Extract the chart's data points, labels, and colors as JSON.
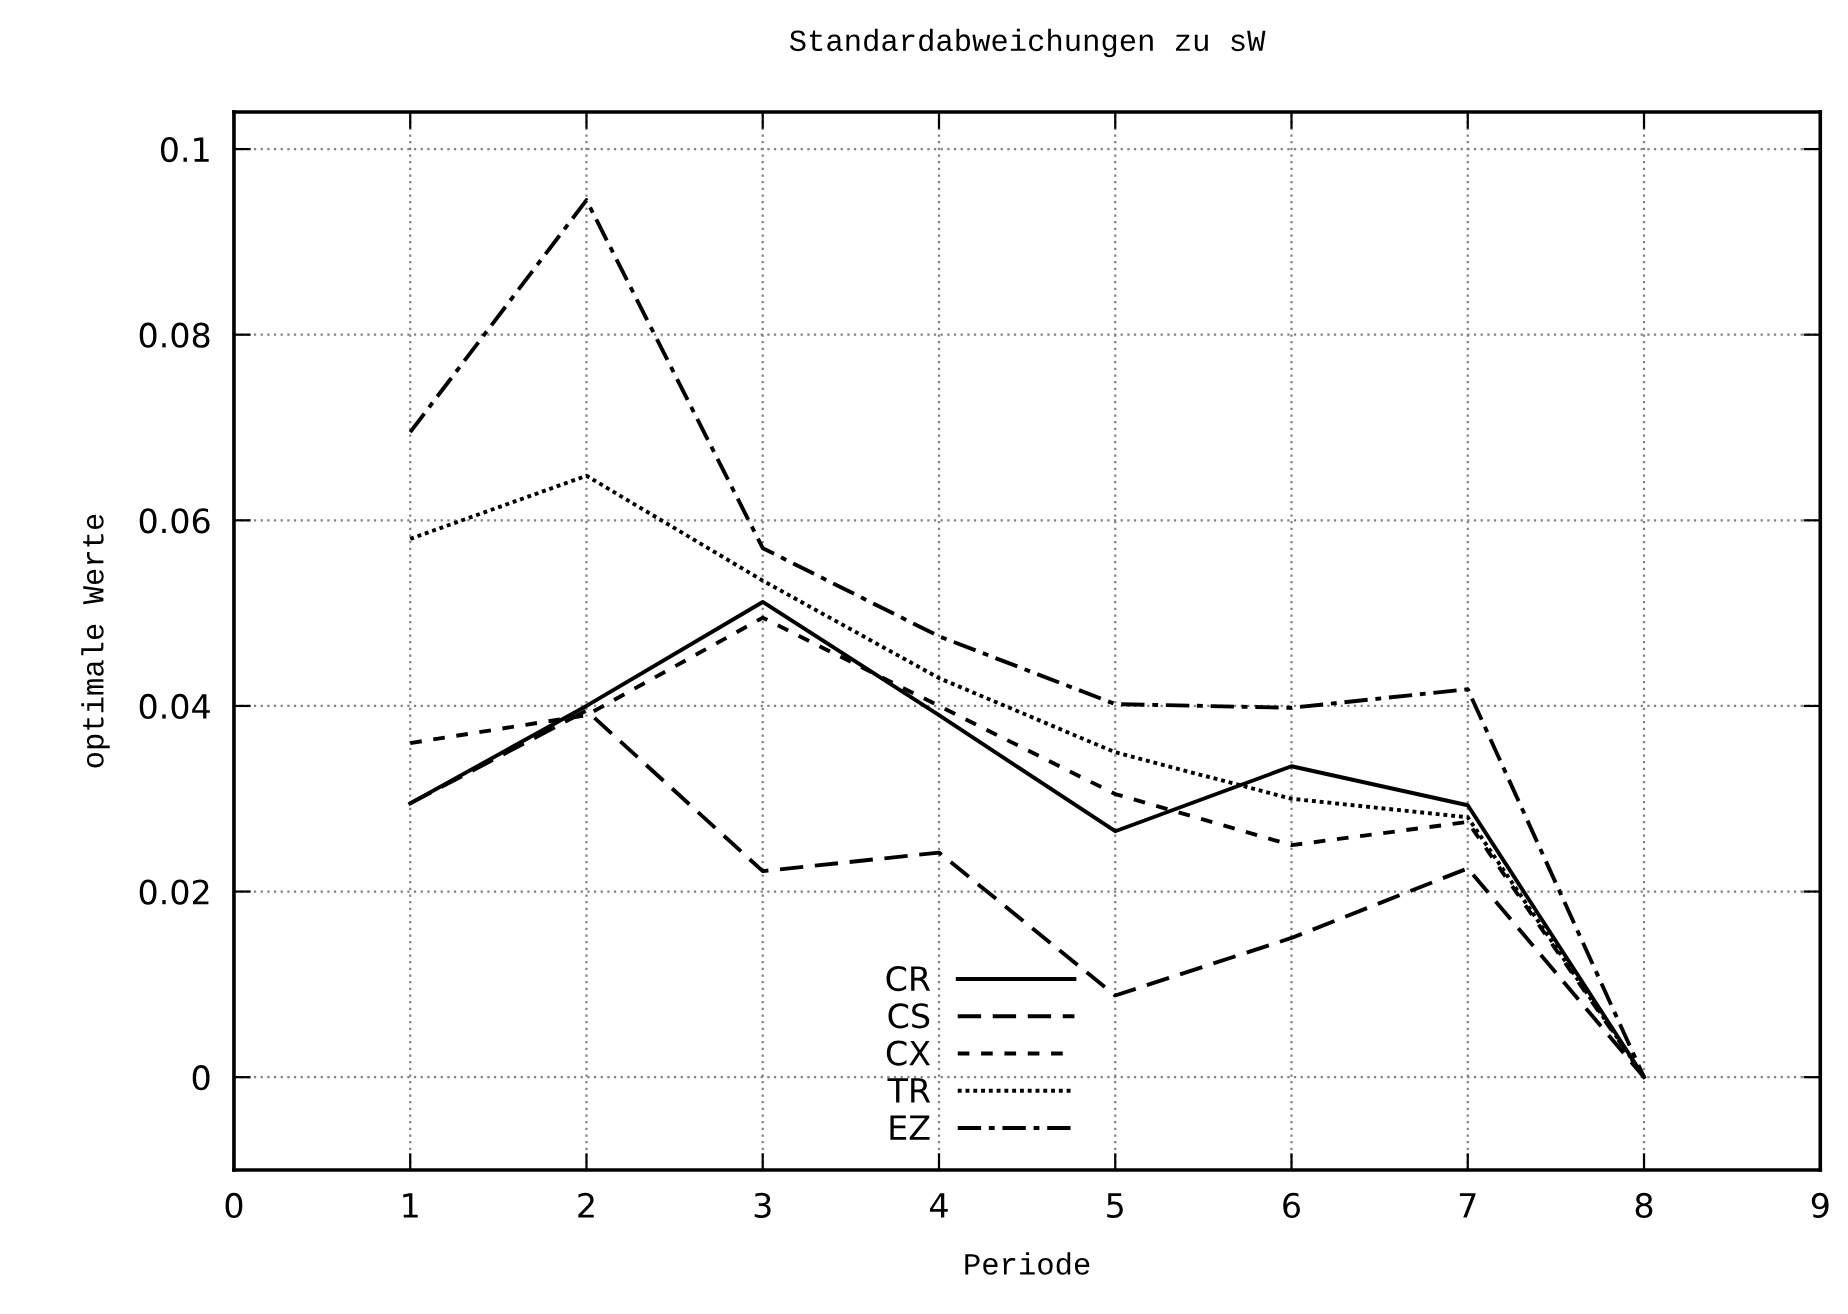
{
  "chart_data": {
    "type": "line",
    "title": "Standardabweichungen zu sW",
    "xlabel": "Periode",
    "ylabel": "optimale Werte",
    "x": [
      1,
      2,
      3,
      4,
      5,
      6,
      7,
      8
    ],
    "series": [
      {
        "name": "CR",
        "color": "#000000",
        "line_style": "solid",
        "values": [
          0.0295,
          0.04,
          0.0512,
          0.039,
          0.0265,
          0.0335,
          0.0293,
          0
        ]
      },
      {
        "name": "CS",
        "color": "#000000",
        "line_style": "dashed",
        "values": [
          0.0295,
          0.0395,
          0.0222,
          0.0242,
          0.0088,
          0.015,
          0.0225,
          0
        ]
      },
      {
        "name": "CX",
        "color": "#000000",
        "line_style": "shortdash",
        "values": [
          0.036,
          0.039,
          0.0495,
          0.04,
          0.0305,
          0.025,
          0.0275,
          0
        ]
      },
      {
        "name": "TR",
        "color": "#000000",
        "line_style": "dotted",
        "values": [
          0.058,
          0.0648,
          0.0535,
          0.043,
          0.035,
          0.03,
          0.028,
          0
        ]
      },
      {
        "name": "EZ",
        "color": "#000000",
        "line_style": "dashdot",
        "values": [
          0.0695,
          0.0945,
          0.057,
          0.0475,
          0.0402,
          0.0398,
          0.0418,
          0
        ]
      }
    ],
    "xlim": [
      0,
      9
    ],
    "xticks": [
      0,
      1,
      2,
      3,
      4,
      5,
      6,
      7,
      8,
      9
    ],
    "ylim": [
      -0.01,
      0.104
    ],
    "yticks": [
      0,
      0.02,
      0.04,
      0.06,
      0.08,
      0.1
    ],
    "grid": true,
    "legend": "bottom",
    "marker": "none"
  }
}
